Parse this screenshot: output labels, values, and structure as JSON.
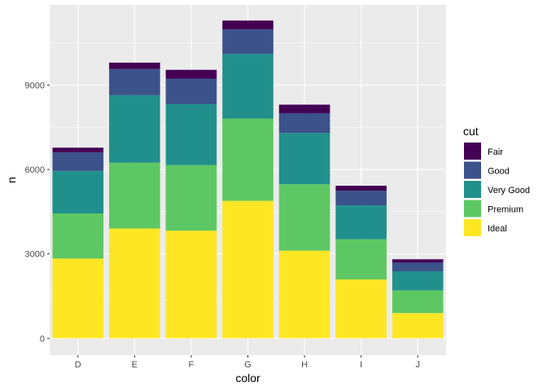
{
  "chart_data": {
    "type": "bar",
    "stacked": true,
    "xlabel": "color",
    "ylabel": "n",
    "categories": [
      "D",
      "E",
      "F",
      "G",
      "H",
      "I",
      "J"
    ],
    "yticks": [
      0,
      3000,
      6000,
      9000
    ],
    "ylim": [
      -600,
      11850
    ],
    "grid": true,
    "legend": {
      "title": "cut",
      "position": "right",
      "entries": [
        {
          "label": "Fair",
          "color": "#440154"
        },
        {
          "label": "Good",
          "color": "#3B528B"
        },
        {
          "label": "Very Good",
          "color": "#21908C"
        },
        {
          "label": "Premium",
          "color": "#5DC863"
        },
        {
          "label": "Ideal",
          "color": "#FDE725"
        }
      ]
    },
    "series": [
      {
        "name": "Fair",
        "values": [
          163,
          224,
          312,
          314,
          303,
          175,
          119
        ]
      },
      {
        "name": "Good",
        "values": [
          662,
          933,
          909,
          871,
          702,
          522,
          307
        ]
      },
      {
        "name": "Very Good",
        "values": [
          1513,
          2400,
          2164,
          2299,
          1824,
          1204,
          678
        ]
      },
      {
        "name": "Premium",
        "values": [
          1603,
          2337,
          2331,
          2924,
          2360,
          1428,
          808
        ]
      },
      {
        "name": "Ideal",
        "values": [
          2834,
          3903,
          3826,
          4884,
          3115,
          2093,
          896
        ]
      }
    ],
    "totals": [
      6775,
      9797,
      9542,
      11292,
      8304,
      5422,
      2808
    ]
  }
}
